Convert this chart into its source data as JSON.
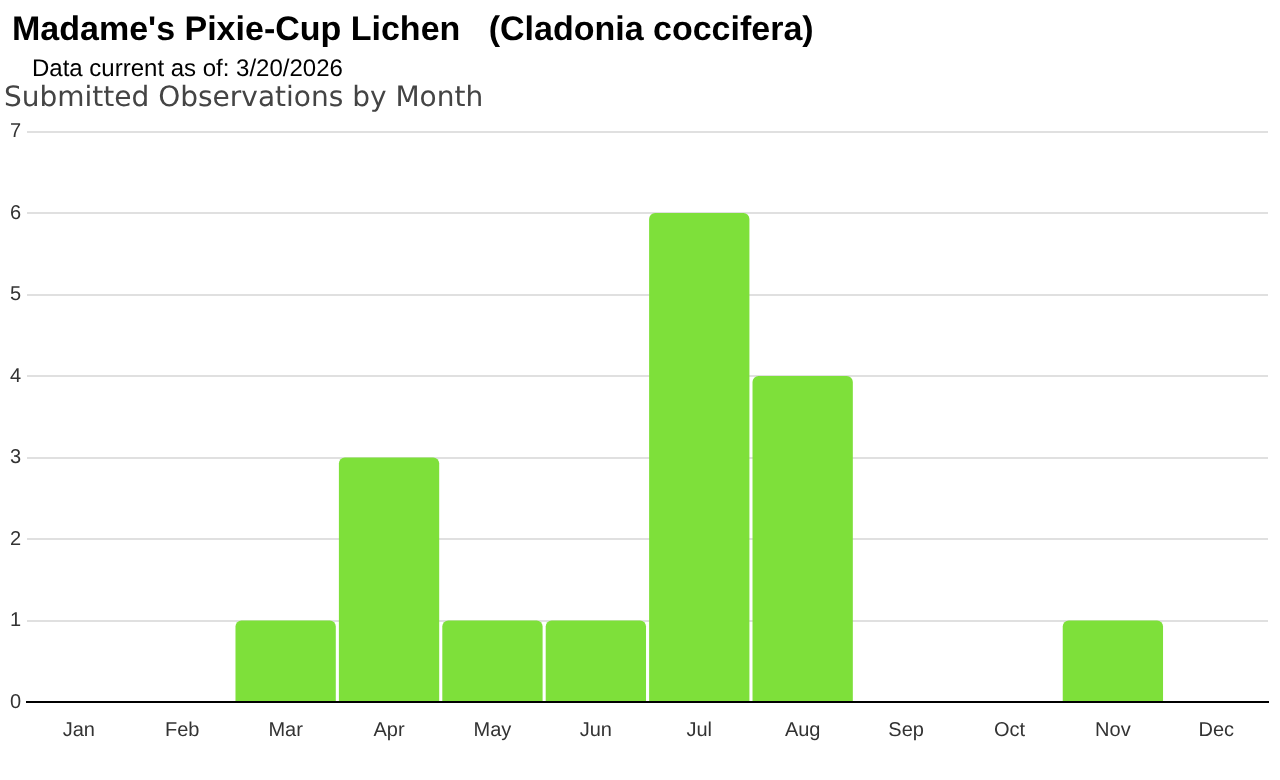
{
  "chart_data": {
    "type": "bar",
    "title": "Madame's Pixie-Cup Lichen   (Cladonia coccifera)",
    "subtitle": "Data current as of: 3/20/2026",
    "annotations": [
      "Submitted Observations by Month"
    ],
    "categories": [
      "Jan",
      "Feb",
      "Mar",
      "Apr",
      "May",
      "Jun",
      "Jul",
      "Aug",
      "Sep",
      "Oct",
      "Nov",
      "Dec"
    ],
    "values": [
      0,
      0,
      1,
      3,
      1,
      1,
      6,
      4,
      0,
      0,
      1,
      0
    ],
    "color": "#7ee03a",
    "ylim": [
      0,
      7
    ],
    "yticks": [
      0,
      1,
      2,
      3,
      4,
      5,
      6,
      7
    ],
    "grid": "y"
  }
}
